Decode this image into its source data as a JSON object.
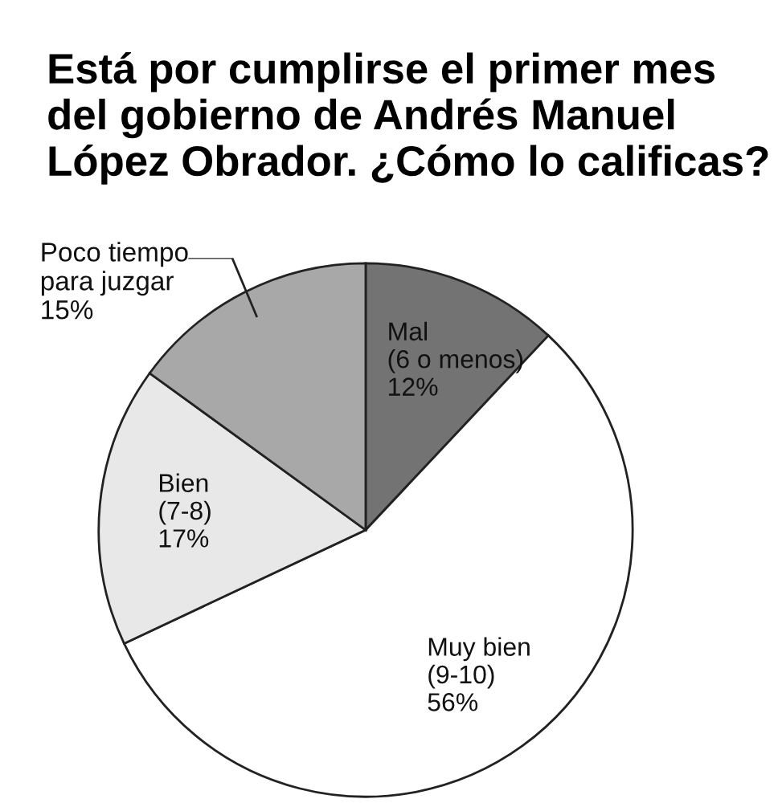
{
  "chart_data": {
    "type": "pie",
    "title": "Está por cumplirse el primer mes del gobierno de Andrés Manuel López Obrador. ¿Cómo lo calificas?",
    "categories": [
      "Mal\n(6 o menos)",
      "Muy bien\n(9-10)",
      "Bien\n(7-8)",
      "Poco tiempo\npara juzgar"
    ],
    "values": [
      12,
      56,
      17,
      15
    ],
    "colors": [
      "#737373",
      "#ffffff",
      "#e8e8e8",
      "#a8a8a8"
    ],
    "value_labels": [
      "12%",
      "56%",
      "17%",
      "15%"
    ]
  }
}
